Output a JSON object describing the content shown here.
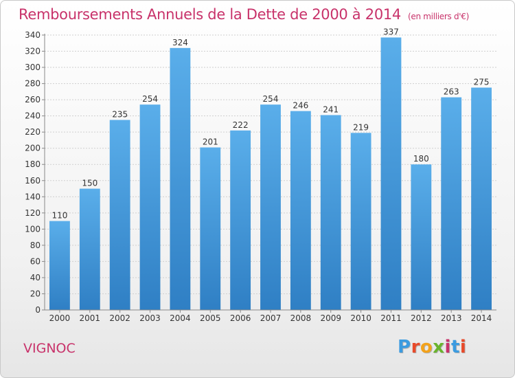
{
  "header": {
    "title": "Remboursements Annuels de la Dette de 2000 à 2014",
    "unit": "(en milliers d'€)"
  },
  "footer": {
    "commune": "VIGNOC",
    "logo": "Proxiti",
    "logo_colors": [
      "#3b9be0",
      "#e84a2a",
      "#f3a21b",
      "#6ab42d",
      "#c8326a",
      "#3b9be0",
      "#e84a2a"
    ]
  },
  "colors": {
    "accent": "#c8326a",
    "bar_top": "#5aaeea",
    "bar_bottom": "#2f7fc4"
  },
  "chart_data": {
    "type": "bar",
    "title": "Remboursements Annuels de la Dette de 2000 à 2014",
    "categories": [
      "2000",
      "2001",
      "2002",
      "2003",
      "2004",
      "2005",
      "2006",
      "2007",
      "2008",
      "2009",
      "2010",
      "2011",
      "2012",
      "2013",
      "2014"
    ],
    "values": [
      110,
      150,
      235,
      254,
      324,
      201,
      222,
      254,
      246,
      241,
      219,
      337,
      180,
      263,
      275
    ],
    "ylim": [
      0,
      340
    ],
    "yticks": [
      0,
      20,
      40,
      60,
      80,
      100,
      120,
      140,
      160,
      180,
      200,
      220,
      240,
      260,
      280,
      300,
      320,
      340
    ],
    "grid": true,
    "data_labels": true
  }
}
